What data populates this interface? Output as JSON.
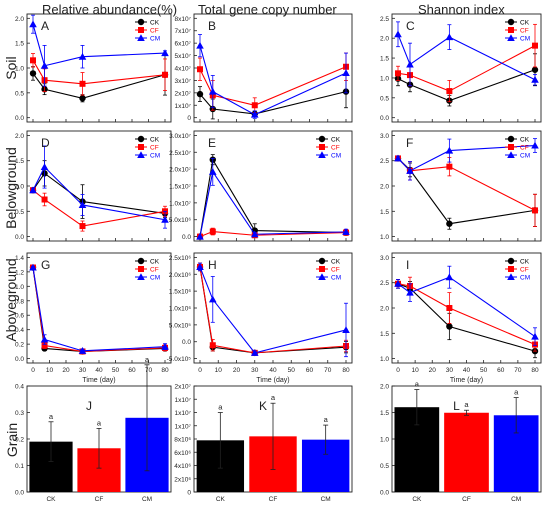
{
  "column_titles": [
    "Relative abundance(%)",
    "Total gene copy number",
    "Shannon index"
  ],
  "row_labels": [
    "Soil",
    "Belowground",
    "Aboveground",
    "Grain"
  ],
  "colors": {
    "CK": "#000000",
    "CF": "#ff0000",
    "CM": "#0000ff"
  },
  "chart_data": [
    {
      "id": "A",
      "type": "line",
      "letter": "A",
      "x": [
        0,
        7,
        30,
        80
      ],
      "ylim": [
        0,
        2.2
      ],
      "yticks": [
        "0.0",
        "0.5",
        "1.0",
        "1.5",
        "2.0"
      ],
      "xticks": [],
      "legend": [
        "CK",
        "CF",
        "CM"
      ],
      "series": [
        {
          "name": "CK",
          "values": [
            0.98,
            0.63,
            0.43,
            0.95
          ],
          "errors": [
            0.15,
            0.12,
            0.08,
            0.45
          ]
        },
        {
          "name": "CF",
          "values": [
            1.27,
            0.83,
            0.75,
            0.95
          ],
          "errors": [
            0.15,
            0.25,
            0.25,
            0.35
          ]
        },
        {
          "name": "CM",
          "values": [
            2.07,
            1.15,
            1.35,
            1.43
          ],
          "errors": [
            0.2,
            0.45,
            0.25,
            0.05
          ]
        }
      ]
    },
    {
      "id": "B",
      "type": "line",
      "letter": "B",
      "x": [
        0,
        7,
        30,
        80
      ],
      "ylim": [
        0,
        80000000.0
      ],
      "yticks": [
        "0",
        "1x10⁷",
        "2x10⁷",
        "3x10⁷",
        "4x10⁷",
        "5x10⁷",
        "6x10⁷",
        "7x10⁷",
        "8x10⁷"
      ],
      "xticks": [],
      "legend": [],
      "series": [
        {
          "name": "CK",
          "values": [
            19000000.0,
            7000000.0,
            3000000.0,
            21000000.0
          ],
          "errors": [
            6000000.0,
            8000000.0,
            2000000.0,
            13000000.0
          ]
        },
        {
          "name": "CF",
          "values": [
            39000000.0,
            18000000.0,
            10000000.0,
            41000000.0
          ],
          "errors": [
            9000000.0,
            12000000.0,
            6000000.0,
            11000000.0
          ]
        },
        {
          "name": "CM",
          "values": [
            58000000.0,
            21000000.0,
            2500000.0,
            36000000.0
          ],
          "errors": [
            9000000.0,
            13000000.0,
            3000000.0,
            16000000.0
          ]
        }
      ]
    },
    {
      "id": "C",
      "type": "line",
      "letter": "C",
      "x": [
        0,
        7,
        30,
        80
      ],
      "ylim": [
        0,
        2.8
      ],
      "yticks": [
        "0.0",
        "0.5",
        "1.0",
        "1.5",
        "2.0",
        "2.5"
      ],
      "xticks": [],
      "legend": [
        "CK",
        "CF",
        "CM"
      ],
      "series": [
        {
          "name": "CK",
          "values": [
            1.1,
            0.93,
            0.48,
            1.35
          ],
          "errors": [
            0.2,
            0.2,
            0.15,
            0.45
          ]
        },
        {
          "name": "CF",
          "values": [
            1.25,
            1.2,
            0.75,
            2.03
          ],
          "errors": [
            0.2,
            0.3,
            0.3,
            0.6
          ]
        },
        {
          "name": "CM",
          "values": [
            2.35,
            1.5,
            2.27,
            1.07
          ],
          "errors": [
            0.35,
            0.6,
            0.35,
            0.15
          ]
        }
      ]
    },
    {
      "id": "D",
      "type": "line",
      "letter": "D",
      "x": [
        0,
        7,
        30,
        80
      ],
      "ylim": [
        0,
        2.4
      ],
      "yticks": [
        "0.0",
        "0.5",
        "1.0",
        "1.5",
        "2.0"
      ],
      "xticks": [],
      "legend": [
        "CK",
        "CF",
        "CM"
      ],
      "series": [
        {
          "name": "CK",
          "values": [
            1.1,
            1.5,
            0.83,
            0.55
          ],
          "errors": [
            0.05,
            0.3,
            0.4,
            0.1
          ]
        },
        {
          "name": "CF",
          "values": [
            1.1,
            0.88,
            0.25,
            0.6
          ],
          "errors": [
            0.05,
            0.15,
            0.12,
            0.12
          ]
        },
        {
          "name": "CM",
          "values": [
            1.1,
            1.65,
            0.75,
            0.4
          ],
          "errors": [
            0.05,
            0.5,
            0.25,
            0.2
          ]
        }
      ]
    },
    {
      "id": "E",
      "type": "line",
      "letter": "E",
      "x": [
        0,
        7,
        30,
        80
      ],
      "ylim": [
        0,
        30000000.0
      ],
      "yticks": [
        "0.0",
        "5.0x10⁶",
        "1.0x10⁷",
        "1.5x10⁷",
        "2.0x10⁷",
        "2.5x10⁷",
        "3.0x10⁷"
      ],
      "xticks": [],
      "legend": [
        "CK",
        "CF",
        "CM"
      ],
      "series": [
        {
          "name": "CK",
          "values": [
            0,
            22800000.0,
            1800000.0,
            1200000.0
          ],
          "errors": [
            0,
            1500000.0,
            2000000.0,
            800000.0
          ]
        },
        {
          "name": "CF",
          "values": [
            0,
            1500000.0,
            400000.0,
            1200000.0
          ],
          "errors": [
            0,
            1000000.0,
            300000.0,
            800000.0
          ]
        },
        {
          "name": "CM",
          "values": [
            0,
            19200000.0,
            700000.0,
            1400000.0
          ],
          "errors": [
            0,
            4000000.0,
            500000.0,
            800000.0
          ]
        }
      ]
    },
    {
      "id": "F",
      "type": "line",
      "letter": "F",
      "x": [
        0,
        7,
        30,
        80
      ],
      "ylim": [
        0.8,
        3.0
      ],
      "yticks": [
        "1.0",
        "1.5",
        "2.0",
        "2.5",
        "3.0"
      ],
      "xticks": [],
      "legend": [
        "CK",
        "CF",
        "CM"
      ],
      "series": [
        {
          "name": "CK",
          "values": [
            2.5,
            2.25,
            1.08,
            1.37
          ],
          "errors": [
            0.05,
            0.15,
            0.12,
            0.35
          ]
        },
        {
          "name": "CF",
          "values": [
            2.5,
            2.23,
            2.32,
            1.37
          ],
          "errors": [
            0.05,
            0.2,
            0.2,
            0.35
          ]
        },
        {
          "name": "CM",
          "values": [
            2.5,
            2.23,
            2.67,
            2.78
          ],
          "errors": [
            0.05,
            0.2,
            0.25,
            0.15
          ]
        }
      ]
    },
    {
      "id": "G",
      "type": "line",
      "letter": "G",
      "x": [
        0,
        7,
        30,
        80
      ],
      "ylim": [
        -0.1,
        1.6
      ],
      "yticks": [
        "0.0",
        "0.2",
        "0.4",
        "0.6",
        "0.8",
        "1.0",
        "1.2",
        "1.4"
      ],
      "xticks": [
        "0",
        "10",
        "20",
        "30",
        "40",
        "50",
        "60",
        "70",
        "80"
      ],
      "legend": [
        "CK",
        "CF",
        "CM"
      ],
      "xlabel": "Time (day)",
      "series": [
        {
          "name": "CK",
          "values": [
            1.43,
            0.07,
            0.02,
            0.07
          ],
          "errors": [
            0.02,
            0.03,
            0.02,
            0.04
          ]
        },
        {
          "name": "CF",
          "values": [
            1.43,
            0.12,
            0.02,
            0.08
          ],
          "errors": [
            0.02,
            0.05,
            0.02,
            0.05
          ]
        },
        {
          "name": "CM",
          "values": [
            1.43,
            0.22,
            0.03,
            0.1
          ],
          "errors": [
            0.02,
            0.08,
            0.03,
            0.05
          ]
        }
      ]
    },
    {
      "id": "H",
      "type": "line",
      "letter": "H",
      "x": [
        0,
        7,
        30,
        80
      ],
      "ylim": [
        -50000.0,
        2600000.0
      ],
      "yticks": [
        "-5.0x10⁵",
        "0.0",
        "5.0x10⁵",
        "1.0x10⁶",
        "1.5x10⁶",
        "2.0x10⁶",
        "2.5x10⁶"
      ],
      "xticks": [
        "0",
        "10",
        "20",
        "30",
        "40",
        "50",
        "60",
        "70",
        "80"
      ],
      "legend": [
        "CK",
        "CF",
        "CM"
      ],
      "xlabel": "Time (day)",
      "series": [
        {
          "name": "CK",
          "values": [
            2350000.0,
            250000.0,
            100000.0,
            250000.0
          ],
          "errors": [
            100000.0,
            100000.0,
            50000.0,
            150000.0
          ]
        },
        {
          "name": "CF",
          "values": [
            2350000.0,
            300000.0,
            100000.0,
            280000.0
          ],
          "errors": [
            100000.0,
            150000.0,
            50000.0,
            150000.0
          ]
        },
        {
          "name": "CM",
          "values": [
            2350000.0,
            1500000.0,
            100000.0,
            700000.0
          ],
          "errors": [
            100000.0,
            600000.0,
            50000.0,
            700000.0
          ]
        }
      ]
    },
    {
      "id": "I",
      "type": "line",
      "letter": "I",
      "x": [
        0,
        7,
        30,
        80
      ],
      "ylim": [
        0.8,
        3.1
      ],
      "yticks": [
        "1.0",
        "1.5",
        "2.0",
        "2.5",
        "3.0"
      ],
      "xticks": [
        "0",
        "10",
        "20",
        "30",
        "40",
        "50",
        "60",
        "70",
        "80"
      ],
      "legend": [
        "CK",
        "CF",
        "CM"
      ],
      "xlabel": "Time (day)",
      "series": [
        {
          "name": "CK",
          "values": [
            2.5,
            2.4,
            1.53,
            0.97
          ],
          "errors": [
            0.1,
            0.15,
            0.3,
            0.15
          ]
        },
        {
          "name": "CF",
          "values": [
            2.5,
            2.45,
            1.95,
            1.12
          ],
          "errors": [
            0.1,
            0.2,
            0.35,
            0.15
          ]
        },
        {
          "name": "CM",
          "values": [
            2.5,
            2.3,
            2.65,
            1.3
          ],
          "errors": [
            0.1,
            0.2,
            0.25,
            0.2
          ]
        }
      ]
    },
    {
      "id": "J",
      "type": "bar",
      "letter": "J",
      "categories": [
        "CK",
        "CF",
        "CM"
      ],
      "values": [
        0.19,
        0.165,
        0.28
      ],
      "errors": [
        0.075,
        0.075,
        0.2
      ],
      "sig": [
        "a",
        "a",
        "a"
      ],
      "ylim": [
        0,
        0.4
      ],
      "yticks": [
        "0.0",
        "0.1",
        "0.2",
        "0.3",
        "0.4"
      ]
    },
    {
      "id": "K",
      "type": "bar",
      "letter": "K",
      "categories": [
        "CK",
        "CF",
        "CM"
      ],
      "values": [
        7800000.0,
        8400000.0,
        7900000.0
      ],
      "errors": [
        4200000.0,
        5000000.0,
        2200000.0
      ],
      "sig": [
        "a",
        "a",
        "a"
      ],
      "ylim": [
        0,
        16000000.0
      ],
      "yticks": [
        "0",
        "2x10⁶",
        "4x10⁶",
        "6x10⁶",
        "8x10⁶",
        "1x10⁷",
        "1x10⁷",
        "1x10⁷",
        "2x10⁷"
      ]
    },
    {
      "id": "L",
      "type": "bar",
      "letter": "L",
      "categories": [
        "CK",
        "CF",
        "CM"
      ],
      "values": [
        1.68,
        1.57,
        1.52
      ],
      "errors": [
        0.35,
        0.05,
        0.35
      ],
      "sig": [
        "a",
        "a",
        "a"
      ],
      "ylim": [
        0,
        2.1
      ],
      "yticks": [
        "0.0",
        "0.5",
        "1.0",
        "1.5",
        "2.0"
      ]
    }
  ]
}
